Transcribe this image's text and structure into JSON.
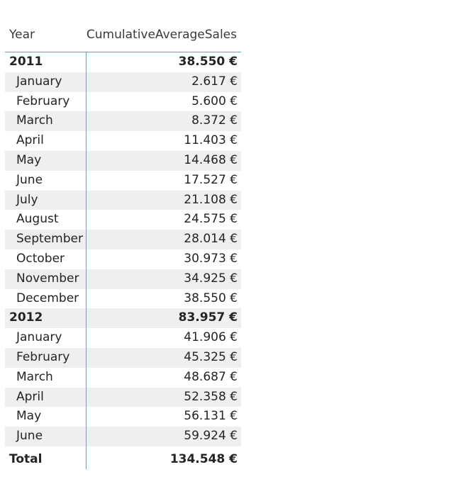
{
  "chart_data": {
    "type": "table",
    "columns": [
      "Year",
      "CumulativeAverageSales"
    ],
    "groups": [
      {
        "year": "2011",
        "value": "38.550 €",
        "months": [
          {
            "month": "January",
            "value": "2.617 €"
          },
          {
            "month": "February",
            "value": "5.600 €"
          },
          {
            "month": "March",
            "value": "8.372 €"
          },
          {
            "month": "April",
            "value": "11.403 €"
          },
          {
            "month": "May",
            "value": "14.468 €"
          },
          {
            "month": "June",
            "value": "17.527 €"
          },
          {
            "month": "July",
            "value": "21.108 €"
          },
          {
            "month": "August",
            "value": "24.575 €"
          },
          {
            "month": "September",
            "value": "28.014 €"
          },
          {
            "month": "October",
            "value": "30.973 €"
          },
          {
            "month": "November",
            "value": "34.925 €"
          },
          {
            "month": "December",
            "value": "38.550 €"
          }
        ]
      },
      {
        "year": "2012",
        "value": "83.957 €",
        "months": [
          {
            "month": "January",
            "value": "41.906 €"
          },
          {
            "month": "February",
            "value": "45.325 €"
          },
          {
            "month": "March",
            "value": "48.687 €"
          },
          {
            "month": "April",
            "value": "52.358 €"
          },
          {
            "month": "May",
            "value": "56.131 €"
          },
          {
            "month": "June",
            "value": "59.924 €"
          }
        ]
      }
    ],
    "total": {
      "label": "Total",
      "value": "134.548 €"
    },
    "colors": {
      "divider": "#41b6c4",
      "row_shade": "#efefef",
      "text": "#252423"
    }
  }
}
